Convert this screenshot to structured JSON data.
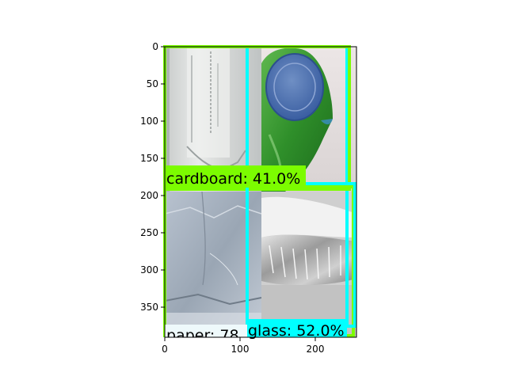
{
  "x_ticks": [
    "0",
    "100",
    "200"
  ],
  "y_ticks": [
    "0",
    "50",
    "100",
    "150",
    "200",
    "250",
    "300",
    "350"
  ],
  "tiles": [
    {
      "name": "tile-bottle-label",
      "subject": "clear plastic bottle with printed lettering"
    },
    {
      "name": "tile-green-bottle",
      "subject": "green glass bottle with blue seal"
    },
    {
      "name": "tile-paper",
      "subject": "crumpled grey paper"
    },
    {
      "name": "tile-foil-tray",
      "subject": "aluminium foil tray"
    }
  ],
  "detections": [
    {
      "label": "cardboard: 41.0%",
      "color": "#7cfc00"
    },
    {
      "label": "paper: 78",
      "color": "#7cfc00"
    },
    {
      "label": "glass: 52.0%",
      "color": "#00ffff"
    },
    {
      "label": "",
      "color": "#7cfc00"
    },
    {
      "label": "",
      "color": "#00ffff"
    }
  ],
  "colors": {
    "green": "#7cfc00",
    "cyan": "#00ffff",
    "axis": "#000000"
  }
}
